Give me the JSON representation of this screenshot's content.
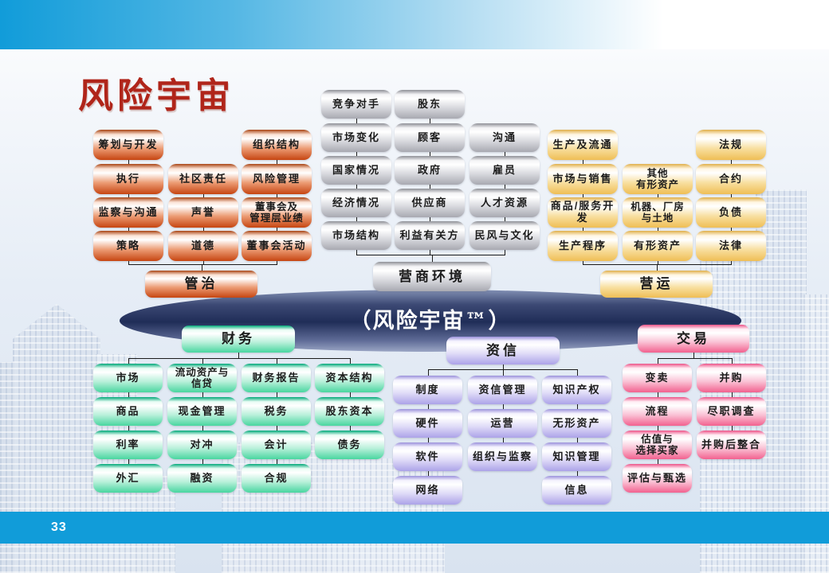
{
  "slide": {
    "title": "风险宇宙",
    "center_ellipse_label": "（风险宇宙™）",
    "page_number": "33"
  },
  "colors": {
    "title_text": "#B0251A",
    "bar_blue": "#119CD9",
    "connector": "#1A1A1A",
    "ellipse_dark": "#202D58",
    "ellipse_light": "#9AA5C4",
    "palettes": {
      "orange": {
        "edge": "#A84312",
        "light": "#FBE3D6",
        "mid": "#EC9C74",
        "deep": "#C64511"
      },
      "gray": {
        "edge": "#8E8F96",
        "light": "#F4F4F6",
        "mid": "#D8D9DE",
        "deep": "#A8A9B1"
      },
      "gold": {
        "edge": "#DFAE49",
        "light": "#FFF6E3",
        "mid": "#F8DFA0",
        "deep": "#EFBE55"
      },
      "green": {
        "edge": "#00A878",
        "light": "#E9FCF4",
        "mid": "#B9F0DA",
        "deep": "#49D6A0"
      },
      "purple": {
        "edge": "#9A90DB",
        "light": "#F5F3FE",
        "mid": "#DEDAF7",
        "deep": "#ACA3E8"
      },
      "pink": {
        "edge": "#EC5287",
        "light": "#FFEFF5",
        "mid": "#FAC2D5",
        "deep": "#F2618F"
      }
    }
  },
  "diagram": {
    "groups": [
      {
        "name": "governance",
        "label": "管治",
        "palette": "orange",
        "header_position": "bottom",
        "column_start_rows": [
          0,
          1,
          0
        ],
        "columns": [
          [
            "筹划与开发",
            "执行",
            "监察与沟通",
            "策略"
          ],
          [
            "社区责任",
            "声誉",
            "道德"
          ],
          [
            "组织结构",
            "风险管理",
            "董事会及\n管理层业绩",
            "董事会活动"
          ]
        ]
      },
      {
        "name": "business",
        "label": "营商环境",
        "palette": "gray",
        "header_position": "bottom",
        "column_start_rows": [
          0,
          0,
          1
        ],
        "columns": [
          [
            "竞争对手",
            "市场变化",
            "国家情况",
            "经济情况",
            "市场结构"
          ],
          [
            "股东",
            "顾客",
            "政府",
            "供应商",
            "利益有关方"
          ],
          [
            "沟通",
            "雇员",
            "人才资源",
            "民风与文化"
          ]
        ]
      },
      {
        "name": "operations",
        "label": "营运",
        "palette": "gold",
        "header_position": "bottom",
        "column_start_rows": [
          0,
          1,
          0
        ],
        "columns": [
          [
            "生产及流通",
            "市场与销售",
            "商品/服务开发",
            "生产程序"
          ],
          [
            "其他\n有形资产",
            "机器、厂房\n与土地",
            "有形资产"
          ],
          [
            "法规",
            "合约",
            "负债",
            "法律"
          ]
        ]
      },
      {
        "name": "finance",
        "label": "财务",
        "palette": "green",
        "header_position": "top",
        "column_start_rows": [
          0,
          0,
          0,
          0
        ],
        "columns": [
          [
            "市场",
            "商品",
            "利率",
            "外汇"
          ],
          [
            "流动资产与\n信贷",
            "现金管理",
            "对冲",
            "融资"
          ],
          [
            "财务报告",
            "税务",
            "会计",
            "合规"
          ],
          [
            "资本结构",
            "股东资本",
            "债务"
          ]
        ]
      },
      {
        "name": "credit",
        "label": "资信",
        "palette": "purple",
        "header_position": "top",
        "column_start_rows": [
          0,
          0,
          0
        ],
        "columns": [
          [
            "制度",
            "硬件",
            "软件",
            "网络"
          ],
          [
            "资信管理",
            "运营",
            "组织与监察"
          ],
          [
            "知识产权",
            "无形资产",
            "知识管理",
            "信息"
          ]
        ]
      },
      {
        "name": "transactions",
        "label": "交易",
        "palette": "pink",
        "header_position": "top",
        "column_start_rows": [
          0,
          0
        ],
        "columns": [
          [
            "变卖",
            "流程",
            "估值与\n选择买家",
            "评估与甄选"
          ],
          [
            "并购",
            "尽职调查",
            "并购后整合"
          ]
        ]
      }
    ]
  }
}
